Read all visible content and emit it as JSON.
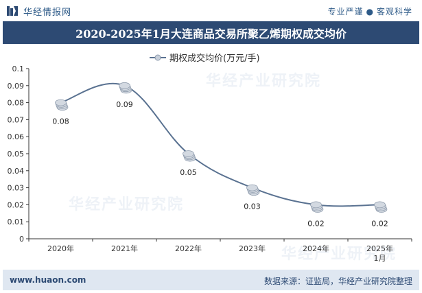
{
  "header": {
    "brand_name": "华经情报网",
    "tagline_left": "专业严谨",
    "tagline_right": "客观科学"
  },
  "title": "2020-2025年1月大连商品交易所聚乙烯期权成交均价",
  "chart_data": {
    "type": "line",
    "title": "2020-2025年1月大连商品交易所聚乙烯期权成交均价",
    "categories": [
      "2020年",
      "2021年",
      "2022年",
      "2023年",
      "2024年",
      "2025年\n1月"
    ],
    "series": [
      {
        "name": "期权成交均价(万元/手)",
        "values": [
          0.08,
          0.09,
          0.05,
          0.03,
          0.02,
          0.02
        ]
      }
    ],
    "data_labels": [
      "0.08",
      "0.09",
      "0.05",
      "0.03",
      "0.02",
      "0.02"
    ],
    "ylim": [
      0,
      0.1
    ],
    "yticks": [
      "0",
      "0.01",
      "0.02",
      "0.03",
      "0.04",
      "0.05",
      "0.06",
      "0.07",
      "0.08",
      "0.09",
      "0.1"
    ],
    "legend_position": "top-center",
    "line_color": "#5a7291",
    "grid": false
  },
  "watermarks": [
    "华经产业研究院",
    "www.huaon.com"
  ],
  "footer": {
    "site": "www.huaon.com",
    "source": "数据来源：证监局，华经产业研究院整理"
  }
}
